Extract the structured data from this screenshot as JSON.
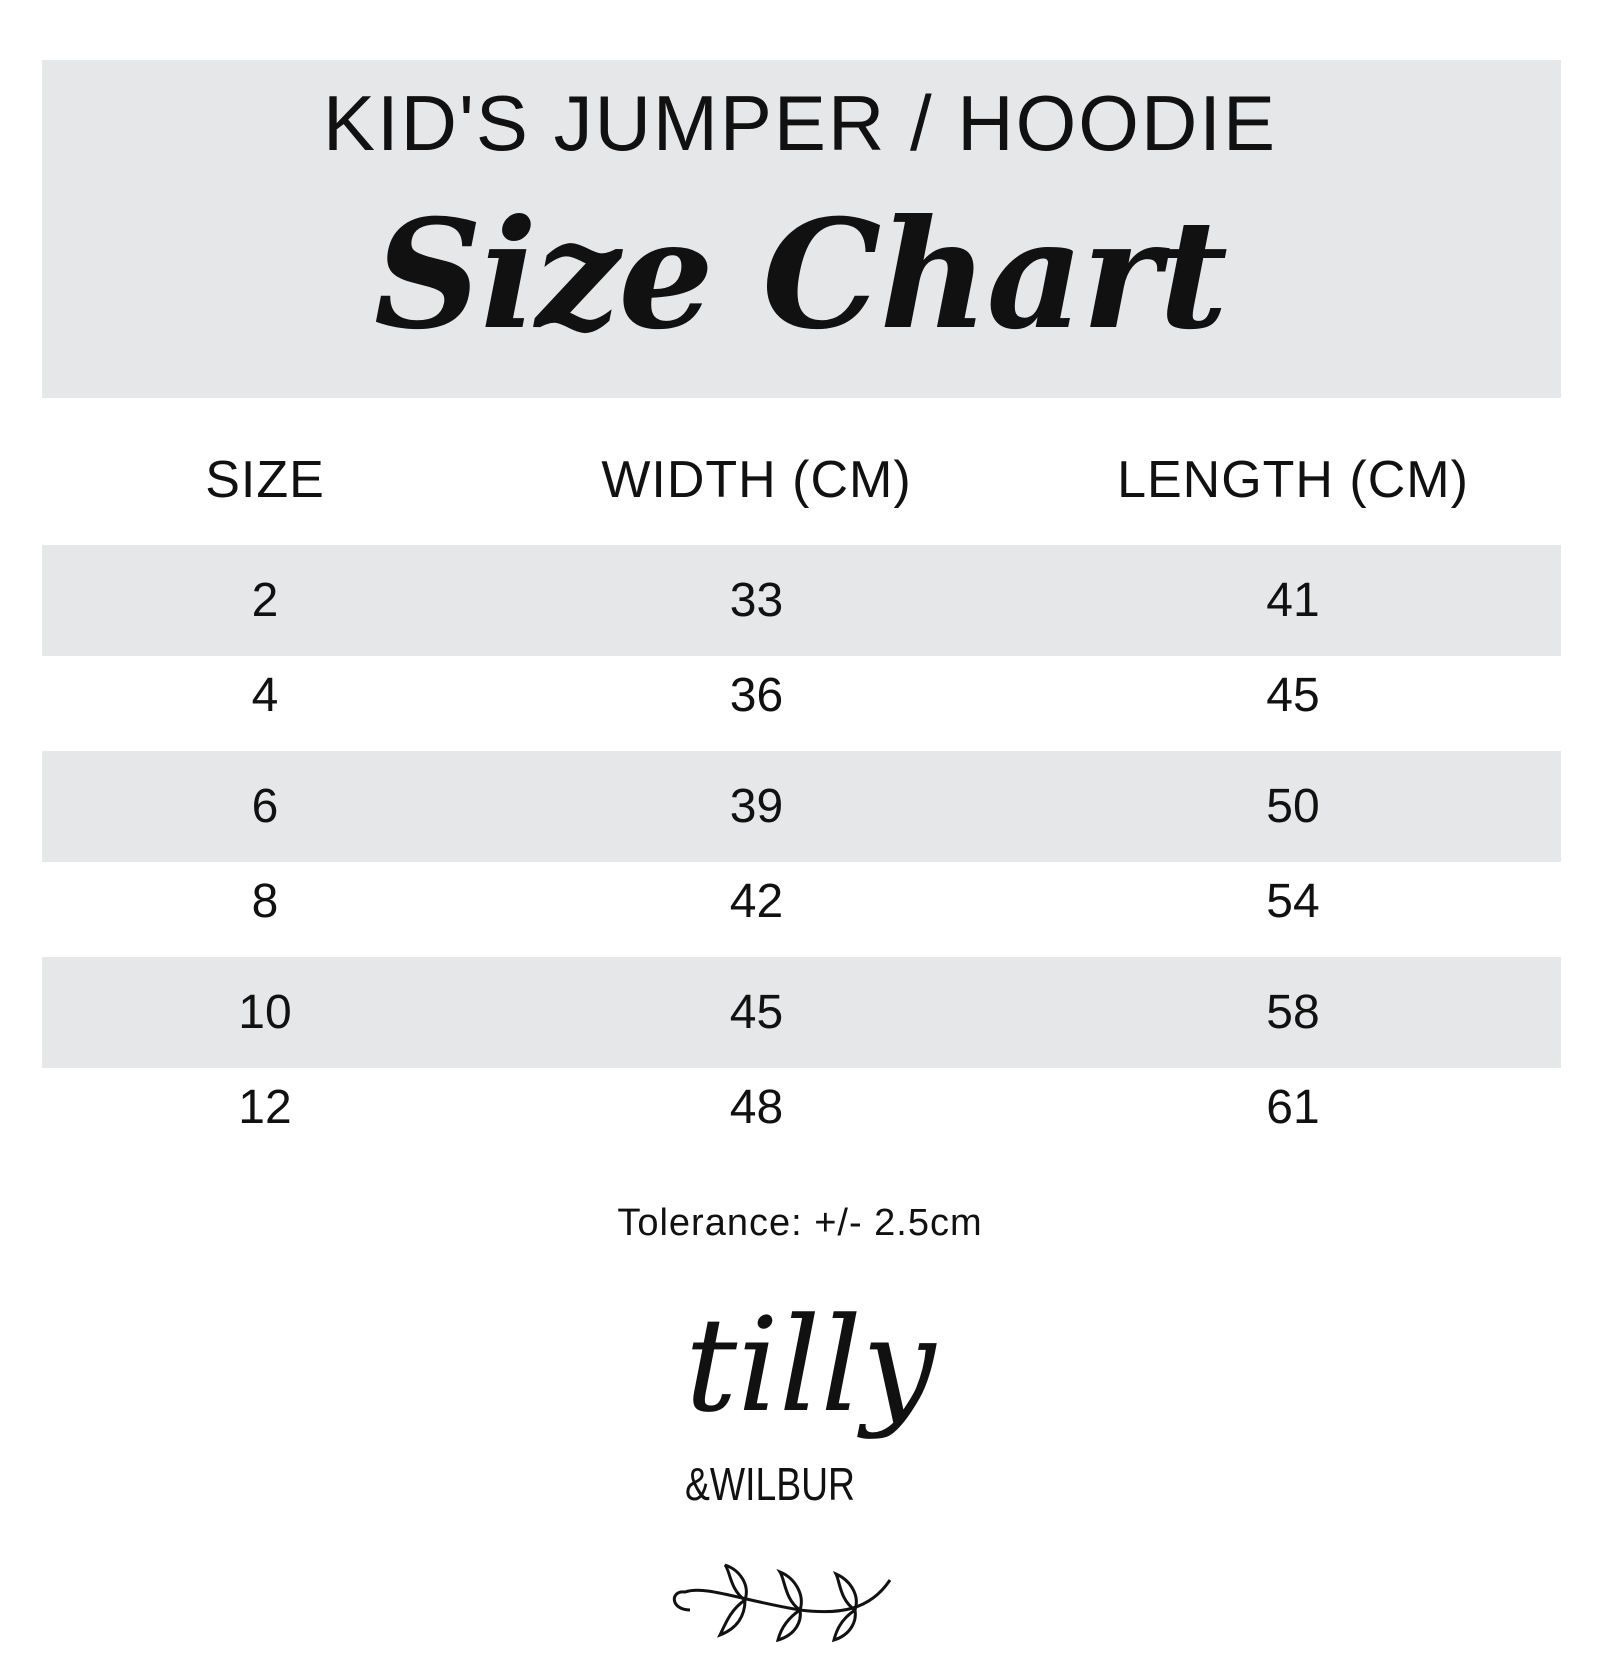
{
  "header": {
    "subtitle": "KID'S JUMPER / HOODIE",
    "title": "Size Chart"
  },
  "table": {
    "columns": [
      "SIZE",
      "WIDTH (CM)",
      "LENGTH (CM)"
    ],
    "rows": [
      [
        "2",
        "33",
        "41"
      ],
      [
        "4",
        "36",
        "45"
      ],
      [
        "6",
        "39",
        "50"
      ],
      [
        "8",
        "42",
        "54"
      ],
      [
        "10",
        "45",
        "58"
      ],
      [
        "12",
        "48",
        "61"
      ]
    ]
  },
  "footer": {
    "tolerance": "Tolerance: +/- 2.5cm"
  },
  "logo": {
    "line1": "tilly",
    "line2": "&WILBUR"
  },
  "colors": {
    "band": "#e6e7e8",
    "text": "#111111"
  }
}
